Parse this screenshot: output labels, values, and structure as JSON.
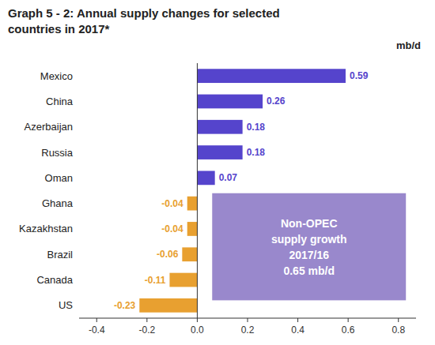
{
  "chart_data": {
    "type": "bar",
    "orientation": "horizontal",
    "title": "Graph 5 - 2: Annual supply changes for selected\ncountries in 2017*",
    "x_label": "mb/d",
    "categories": [
      "Mexico",
      "China",
      "Azerbaijan",
      "Russia",
      "Oman",
      "Ghana",
      "Kazakhstan",
      "Brazil",
      "Canada",
      "US"
    ],
    "values": [
      0.59,
      0.26,
      0.18,
      0.18,
      0.07,
      -0.04,
      -0.04,
      -0.06,
      -0.11,
      -0.23
    ],
    "colors": [
      "#5544cc",
      "#5544cc",
      "#5544cc",
      "#5544cc",
      "#5544cc",
      "#e8a030",
      "#e8a030",
      "#e8a030",
      "#e8a030",
      "#e8a030"
    ],
    "xlim": [
      -0.47,
      0.87
    ],
    "xticks": [
      -0.4,
      -0.2,
      {
        "value": 0.0,
        "label": "0.0"
      },
      0.2,
      0.4,
      0.6,
      0.8
    ],
    "data_labels": true,
    "annotations": [
      {
        "text": "Non-OPEC\nsupply growth\n2017/16\n0.65 mb/d",
        "color": "#9988cc"
      }
    ]
  }
}
